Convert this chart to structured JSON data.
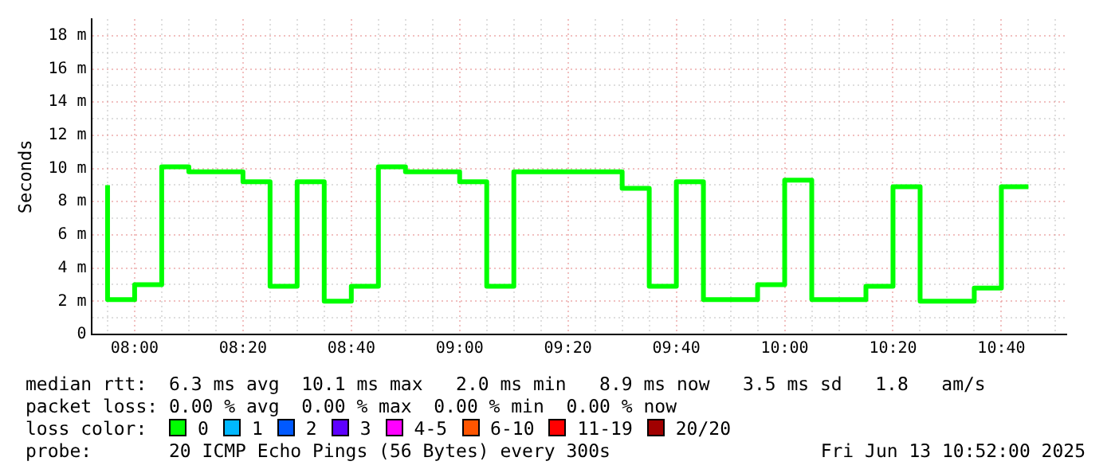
{
  "chart_data": {
    "type": "step",
    "ylabel": "Seconds",
    "x": [
      7.9167,
      8,
      8.0833,
      8.1667,
      8.25,
      8.3333,
      8.4167,
      8.5,
      8.5833,
      8.6667,
      8.75,
      8.8333,
      8.9167,
      9,
      9.0833,
      9.1667,
      9.25,
      9.3333,
      9.4167,
      9.5,
      9.5833,
      9.6667,
      9.75,
      9.8333,
      9.9167,
      10,
      10.0833,
      10.1667,
      10.25,
      10.3333,
      10.4167,
      10.5,
      10.5833,
      10.6667,
      10.75
    ],
    "series": [
      {
        "color": "#00ff00",
        "values": [
          9.0,
          2.1,
          3.0,
          10.1,
          9.8,
          9.8,
          9.2,
          2.9,
          9.2,
          2.0,
          2.9,
          10.1,
          9.8,
          9.8,
          9.2,
          2.9,
          9.8,
          9.8,
          9.8,
          9.8,
          8.8,
          2.9,
          9.2,
          2.1,
          2.1,
          3.0,
          9.3,
          2.1,
          2.1,
          2.9,
          8.9,
          2.0,
          2.0,
          2.8,
          8.9
        ]
      }
    ],
    "xlim": [
      7.8667,
      10.8667
    ],
    "xticks": [
      {
        "value": 7.9167,
        "label": null
      },
      {
        "value": 8,
        "label": "08:00"
      },
      {
        "value": 8.0833,
        "label": null
      },
      {
        "value": 8.1667,
        "label": null
      },
      {
        "value": 8.25,
        "label": null
      },
      {
        "value": 8.3333,
        "label": "08:20"
      },
      {
        "value": 8.4167,
        "label": null
      },
      {
        "value": 8.5,
        "label": null
      },
      {
        "value": 8.5833,
        "label": null
      },
      {
        "value": 8.6667,
        "label": "08:40"
      },
      {
        "value": 8.75,
        "label": null
      },
      {
        "value": 8.8333,
        "label": null
      },
      {
        "value": 8.9167,
        "label": null
      },
      {
        "value": 9,
        "label": "09:00"
      },
      {
        "value": 9.0833,
        "label": null
      },
      {
        "value": 9.1667,
        "label": null
      },
      {
        "value": 9.25,
        "label": null
      },
      {
        "value": 9.3333,
        "label": "09:20"
      },
      {
        "value": 9.4167,
        "label": null
      },
      {
        "value": 9.5,
        "label": null
      },
      {
        "value": 9.5833,
        "label": null
      },
      {
        "value": 9.6667,
        "label": "09:40"
      },
      {
        "value": 9.75,
        "label": null
      },
      {
        "value": 9.8333,
        "label": null
      },
      {
        "value": 9.9167,
        "label": null
      },
      {
        "value": 10,
        "label": "10:00"
      },
      {
        "value": 10.0833,
        "label": null
      },
      {
        "value": 10.1667,
        "label": null
      },
      {
        "value": 10.25,
        "label": null
      },
      {
        "value": 10.3333,
        "label": "10:20"
      },
      {
        "value": 10.4167,
        "label": null
      },
      {
        "value": 10.5,
        "label": null
      },
      {
        "value": 10.5833,
        "label": null
      },
      {
        "value": 10.6667,
        "label": "10:40"
      },
      {
        "value": 10.75,
        "label": null
      },
      {
        "value": 10.8333,
        "label": null
      }
    ],
    "ylim": [
      0,
      19
    ],
    "yticks": [
      0,
      {
        "value": 1,
        "label": null
      },
      {
        "value": 2,
        "label": "2 m"
      },
      {
        "value": 3,
        "label": null
      },
      {
        "value": 4,
        "label": "4 m"
      },
      {
        "value": 5,
        "label": null
      },
      {
        "value": 6,
        "label": "6 m"
      },
      {
        "value": 7,
        "label": null
      },
      {
        "value": 8,
        "label": "8 m"
      },
      {
        "value": 9,
        "label": null
      },
      {
        "value": 10,
        "label": "10 m"
      },
      {
        "value": 11,
        "label": null
      },
      {
        "value": 12,
        "label": "12 m"
      },
      {
        "value": 13,
        "label": null
      },
      {
        "value": 14,
        "label": "14 m"
      },
      {
        "value": 15,
        "label": null
      },
      {
        "value": 16,
        "label": "16 m"
      },
      {
        "value": 17,
        "label": null
      },
      {
        "value": 18,
        "label": "18 m"
      }
    ],
    "grid": true,
    "legend": false,
    "annotations": [
      "median rtt:  6.3 ms avg  10.1 ms max   2.0 ms min   8.9 ms now   3.5 ms sd   1.8   am/s",
      "packet loss: 0.00 % avg  0.00 % max  0.00 % min  0.00 % now",
      "loss color:",
      "0",
      "1",
      "2",
      "3",
      "4-5",
      "6-10",
      "11-19",
      "20/20",
      "probe:       20 ICMP Echo Pings (56 Bytes) every 300s",
      "Fri Jun 13 10:52:00 2025"
    ]
  }
}
